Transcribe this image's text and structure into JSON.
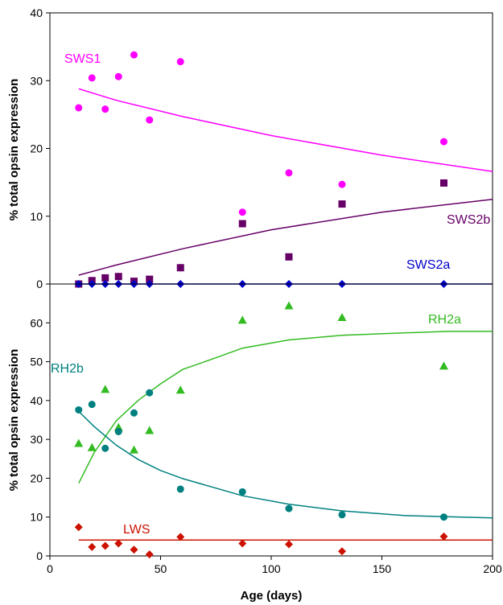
{
  "chart_data": [
    {
      "type": "scatter",
      "panel": "upper",
      "xlabel": "",
      "ylabel": "% total opsin expression",
      "xlim": [
        0,
        200
      ],
      "ylim": [
        0,
        40
      ],
      "y_ticks": [
        "0",
        "10",
        "20",
        "30",
        "40"
      ],
      "grid": false,
      "series": [
        {
          "name": "SWS1",
          "color": "#ff00ff",
          "marker": "circle",
          "points": [
            [
              13,
              26.0
            ],
            [
              19,
              30.4
            ],
            [
              25,
              25.8
            ],
            [
              31,
              30.6
            ],
            [
              38,
              33.8
            ],
            [
              45,
              24.2
            ],
            [
              59,
              32.8
            ],
            [
              87,
              10.6
            ],
            [
              108,
              16.4
            ],
            [
              132,
              14.7
            ],
            [
              178,
              21.0
            ]
          ],
          "trend": [
            [
              13,
              28.8
            ],
            [
              30,
              27.1
            ],
            [
              60,
              24.7
            ],
            [
              100,
              21.9
            ],
            [
              150,
              19.0
            ],
            [
              200,
              16.6
            ]
          ]
        },
        {
          "name": "SWS2b",
          "color": "#660066",
          "marker": "square",
          "points": [
            [
              13,
              0.0
            ],
            [
              19,
              0.5
            ],
            [
              25,
              0.9
            ],
            [
              31,
              1.1
            ],
            [
              38,
              0.4
            ],
            [
              45,
              0.7
            ],
            [
              59,
              2.4
            ],
            [
              87,
              8.9
            ],
            [
              108,
              4.0
            ],
            [
              132,
              11.8
            ],
            [
              178,
              14.9
            ]
          ],
          "trend": [
            [
              13,
              1.3
            ],
            [
              30,
              2.8
            ],
            [
              60,
              5.2
            ],
            [
              100,
              8.0
            ],
            [
              150,
              10.6
            ],
            [
              200,
              12.5
            ]
          ]
        },
        {
          "name": "SWS2a",
          "color": "#0000cc",
          "marker": "diamond",
          "points": [
            [
              13,
              0.0
            ],
            [
              19,
              0.0
            ],
            [
              25,
              0.0
            ],
            [
              31,
              0.0
            ],
            [
              38,
              0.0
            ],
            [
              45,
              0.0
            ],
            [
              59,
              0.0
            ],
            [
              87,
              0.0
            ],
            [
              108,
              0.0
            ],
            [
              132,
              0.0
            ],
            [
              178,
              0.0
            ]
          ],
          "trend": [
            [
              13,
              0.0
            ],
            [
              200,
              0.0
            ]
          ]
        }
      ]
    },
    {
      "type": "scatter",
      "panel": "lower",
      "xlabel": "Age (days)",
      "ylabel": "% total opsin expression",
      "xlim": [
        0,
        200
      ],
      "ylim": [
        0,
        70
      ],
      "x_ticks": [
        "0",
        "50",
        "100",
        "150",
        "200"
      ],
      "y_ticks": [
        "0",
        "10",
        "20",
        "30",
        "40",
        "50",
        "60"
      ],
      "grid": false,
      "series": [
        {
          "name": "RH2a",
          "color": "#33bb22",
          "marker": "triangle",
          "points": [
            [
              13,
              28.9
            ],
            [
              19,
              27.8
            ],
            [
              25,
              42.8
            ],
            [
              31,
              33.0
            ],
            [
              38,
              27.2
            ],
            [
              45,
              32.2
            ],
            [
              59,
              42.6
            ],
            [
              87,
              60.6
            ],
            [
              108,
              64.3
            ],
            [
              132,
              61.3
            ],
            [
              178,
              48.8
            ]
          ],
          "trend": [
            [
              13,
              18.7
            ],
            [
              20,
              26.6
            ],
            [
              30,
              34.8
            ],
            [
              40,
              40.1
            ],
            [
              50,
              44.3
            ],
            [
              60,
              48.0
            ],
            [
              75,
              51.0
            ],
            [
              87,
              53.5
            ],
            [
              108,
              55.6
            ],
            [
              132,
              56.8
            ],
            [
              160,
              57.4
            ],
            [
              180,
              57.8
            ],
            [
              200,
              57.8
            ]
          ]
        },
        {
          "name": "RH2b",
          "color": "#008080",
          "marker": "circle",
          "points": [
            [
              13,
              37.6
            ],
            [
              19,
              39.0
            ],
            [
              25,
              27.7
            ],
            [
              31,
              32.0
            ],
            [
              38,
              36.8
            ],
            [
              45,
              42.0
            ],
            [
              59,
              17.2
            ],
            [
              87,
              16.5
            ],
            [
              108,
              12.2
            ],
            [
              132,
              10.6
            ],
            [
              178,
              10.0
            ]
          ],
          "trend": [
            [
              13,
              37.2
            ],
            [
              20,
              33.3
            ],
            [
              30,
              28.5
            ],
            [
              40,
              24.8
            ],
            [
              50,
              22.0
            ],
            [
              60,
              19.9
            ],
            [
              87,
              15.5
            ],
            [
              108,
              13.3
            ],
            [
              132,
              11.6
            ],
            [
              160,
              10.4
            ],
            [
              200,
              9.8
            ]
          ]
        },
        {
          "name": "LWS",
          "color": "#cc1100",
          "marker": "diamond",
          "points": [
            [
              13,
              7.4
            ],
            [
              19,
              2.3
            ],
            [
              25,
              2.6
            ],
            [
              31,
              3.2
            ],
            [
              38,
              1.6
            ],
            [
              45,
              0.4
            ],
            [
              59,
              4.9
            ],
            [
              87,
              3.2
            ],
            [
              108,
              3.0
            ],
            [
              132,
              1.2
            ],
            [
              178,
              5.0
            ]
          ],
          "trend": [
            [
              13,
              4.1
            ],
            [
              200,
              4.1
            ]
          ]
        }
      ]
    }
  ]
}
